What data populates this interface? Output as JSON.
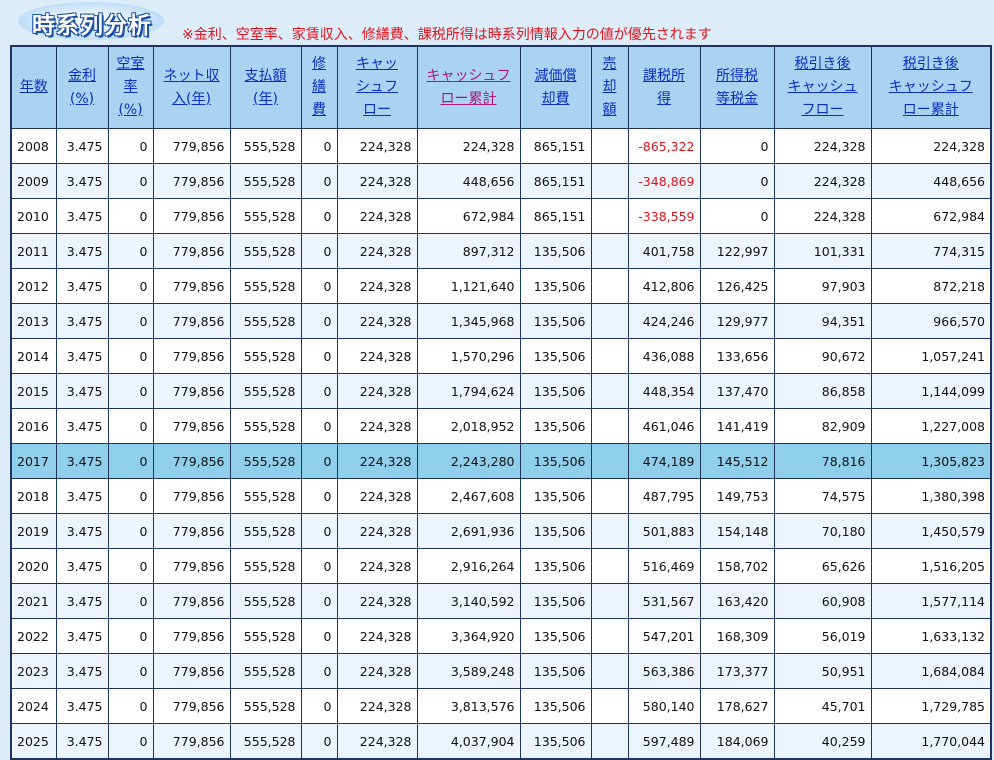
{
  "header": {
    "title": "時系列分析",
    "note": "※金利、空室率、家賃収入、修繕費、課税所得は時系列情報入力の値が優先されます"
  },
  "table": {
    "headers": [
      "年数",
      "金利\n(%)",
      "空室\n率\n(%)",
      "ネット収\n入(年)",
      "支払額\n(年)",
      "修\n繕\n費",
      "キャッ\nシュフ\nロー",
      "キャッシュフ\nロー累計",
      "減価償\n却費",
      "売\n却\n額",
      "課税所\n得",
      "所得税\n等税金",
      "税引き後\nキャッシュ\nフロー",
      "税引き後\nキャッシュフ\nロー累計"
    ],
    "rows": [
      [
        "2008",
        "3.475",
        "0",
        "779,856",
        "555,528",
        "0",
        "224,328",
        "224,328",
        "865,151",
        null,
        "-865,322",
        "0",
        "224,328",
        "224,328"
      ],
      [
        "2009",
        "3.475",
        "0",
        "779,856",
        "555,528",
        "0",
        "224,328",
        "448,656",
        "865,151",
        null,
        "-348,869",
        "0",
        "224,328",
        "448,656"
      ],
      [
        "2010",
        "3.475",
        "0",
        "779,856",
        "555,528",
        "0",
        "224,328",
        "672,984",
        "865,151",
        null,
        "-338,559",
        "0",
        "224,328",
        "672,984"
      ],
      [
        "2011",
        "3.475",
        "0",
        "779,856",
        "555,528",
        "0",
        "224,328",
        "897,312",
        "135,506",
        null,
        "401,758",
        "122,997",
        "101,331",
        "774,315"
      ],
      [
        "2012",
        "3.475",
        "0",
        "779,856",
        "555,528",
        "0",
        "224,328",
        "1,121,640",
        "135,506",
        null,
        "412,806",
        "126,425",
        "97,903",
        "872,218"
      ],
      [
        "2013",
        "3.475",
        "0",
        "779,856",
        "555,528",
        "0",
        "224,328",
        "1,345,968",
        "135,506",
        null,
        "424,246",
        "129,977",
        "94,351",
        "966,570"
      ],
      [
        "2014",
        "3.475",
        "0",
        "779,856",
        "555,528",
        "0",
        "224,328",
        "1,570,296",
        "135,506",
        null,
        "436,088",
        "133,656",
        "90,672",
        "1,057,241"
      ],
      [
        "2015",
        "3.475",
        "0",
        "779,856",
        "555,528",
        "0",
        "224,328",
        "1,794,624",
        "135,506",
        null,
        "448,354",
        "137,470",
        "86,858",
        "1,144,099"
      ],
      [
        "2016",
        "3.475",
        "0",
        "779,856",
        "555,528",
        "0",
        "224,328",
        "2,018,952",
        "135,506",
        null,
        "461,046",
        "141,419",
        "82,909",
        "1,227,008"
      ],
      [
        "2017",
        "3.475",
        "0",
        "779,856",
        "555,528",
        "0",
        "224,328",
        "2,243,280",
        "135,506",
        null,
        "474,189",
        "145,512",
        "78,816",
        "1,305,823"
      ],
      [
        "2018",
        "3.475",
        "0",
        "779,856",
        "555,528",
        "0",
        "224,328",
        "2,467,608",
        "135,506",
        null,
        "487,795",
        "149,753",
        "74,575",
        "1,380,398"
      ],
      [
        "2019",
        "3.475",
        "0",
        "779,856",
        "555,528",
        "0",
        "224,328",
        "2,691,936",
        "135,506",
        null,
        "501,883",
        "154,148",
        "70,180",
        "1,450,579"
      ],
      [
        "2020",
        "3.475",
        "0",
        "779,856",
        "555,528",
        "0",
        "224,328",
        "2,916,264",
        "135,506",
        null,
        "516,469",
        "158,702",
        "65,626",
        "1,516,205"
      ],
      [
        "2021",
        "3.475",
        "0",
        "779,856",
        "555,528",
        "0",
        "224,328",
        "3,140,592",
        "135,506",
        null,
        "531,567",
        "163,420",
        "60,908",
        "1,577,114"
      ],
      [
        "2022",
        "3.475",
        "0",
        "779,856",
        "555,528",
        "0",
        "224,328",
        "3,364,920",
        "135,506",
        null,
        "547,201",
        "168,309",
        "56,019",
        "1,633,132"
      ],
      [
        "2023",
        "3.475",
        "0",
        "779,856",
        "555,528",
        "0",
        "224,328",
        "3,589,248",
        "135,506",
        null,
        "563,386",
        "173,377",
        "50,951",
        "1,684,084"
      ],
      [
        "2024",
        "3.475",
        "0",
        "779,856",
        "555,528",
        "0",
        "224,328",
        "3,813,576",
        "135,506",
        null,
        "580,140",
        "178,627",
        "45,701",
        "1,729,785"
      ],
      [
        "2025",
        "3.475",
        "0",
        "779,856",
        "555,528",
        "0",
        "224,328",
        "4,037,904",
        "135,506",
        null,
        "597,489",
        "184,069",
        "40,259",
        "1,770,044"
      ]
    ]
  }
}
